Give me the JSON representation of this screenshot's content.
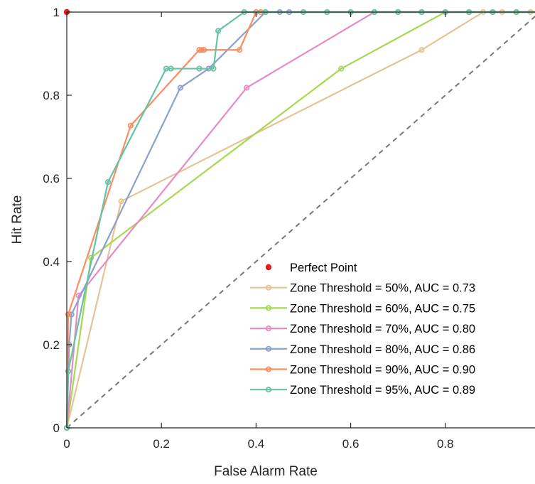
{
  "chart_data": {
    "type": "line",
    "xlabel": "False Alarm Rate",
    "ylabel": "Hit Rate",
    "xlim": [
      0,
      1
    ],
    "ylim": [
      0,
      1
    ],
    "xticks": [
      "0",
      "0.2",
      "0.4",
      "0.6",
      "0.8"
    ],
    "yticks": [
      "0",
      "0.2",
      "0.4",
      "0.6",
      "0.8",
      "1"
    ],
    "grid": false,
    "legend_position": "bottom-right",
    "chance_line": {
      "from": [
        0,
        0
      ],
      "to": [
        1,
        1
      ],
      "style": "dashed",
      "color": "#777777"
    },
    "perfect_point": {
      "name": "Perfect Point",
      "x": 0,
      "y": 1,
      "color": "#e41a1c"
    },
    "series": [
      {
        "name": "Zone Threshold = 50%, AUC = 0.73",
        "color": "#e5c494",
        "x": [
          0,
          0.115,
          0.75,
          0.88,
          0.92,
          0.95,
          0.98,
          1.0
        ],
        "y": [
          0,
          0.545,
          0.909,
          1,
          1,
          1,
          1,
          1
        ]
      },
      {
        "name": "Zone Threshold = 60%, AUC = 0.75",
        "color": "#a6d854",
        "x": [
          0,
          0.051,
          0.58,
          0.8,
          0.85,
          0.9,
          0.95,
          1.0
        ],
        "y": [
          0,
          0.409,
          0.864,
          1,
          1,
          1,
          1,
          1
        ]
      },
      {
        "name": "Zone Threshold = 70%, AUC = 0.80",
        "color": "#e78ac3",
        "x": [
          0,
          0.025,
          0.38,
          0.65,
          0.7,
          0.75,
          0.8,
          0.85,
          0.9,
          1.0
        ],
        "y": [
          0,
          0.318,
          0.818,
          1,
          1,
          1,
          1,
          1,
          1,
          1
        ]
      },
      {
        "name": "Zone Threshold = 80%, AUC = 0.86",
        "color": "#8da0cb",
        "x": [
          0,
          0.005,
          0.01,
          0.24,
          0.3,
          0.42,
          0.45,
          0.47,
          0.55,
          0.65,
          0.75,
          0.85,
          1.0
        ],
        "y": [
          0,
          0.2,
          0.273,
          0.818,
          0.864,
          1,
          1,
          1,
          1,
          1,
          1,
          1,
          1
        ]
      },
      {
        "name": "Zone Threshold = 90%, AUC = 0.90",
        "color": "#fc8d62",
        "x": [
          0,
          0.003,
          0.135,
          0.28,
          0.285,
          0.29,
          0.365,
          0.4,
          0.41,
          0.5,
          0.6,
          0.7,
          0.8,
          0.9,
          1.0
        ],
        "y": [
          0,
          0.273,
          0.727,
          0.909,
          0.909,
          0.909,
          0.909,
          1,
          1,
          1,
          1,
          1,
          1,
          1,
          1
        ]
      },
      {
        "name": "Zone Threshold = 95%, AUC = 0.89",
        "color": "#66c2a5",
        "x": [
          0,
          0.003,
          0.087,
          0.21,
          0.22,
          0.28,
          0.31,
          0.32,
          0.375,
          0.42,
          0.5,
          0.55,
          0.6,
          0.65,
          0.7,
          0.75,
          0.8,
          0.85,
          0.9,
          0.95,
          1.0
        ],
        "y": [
          0,
          0.136,
          0.591,
          0.864,
          0.864,
          0.864,
          0.864,
          0.955,
          1,
          1,
          1,
          1,
          1,
          1,
          1,
          1,
          1,
          1,
          1,
          1,
          1
        ]
      }
    ]
  }
}
